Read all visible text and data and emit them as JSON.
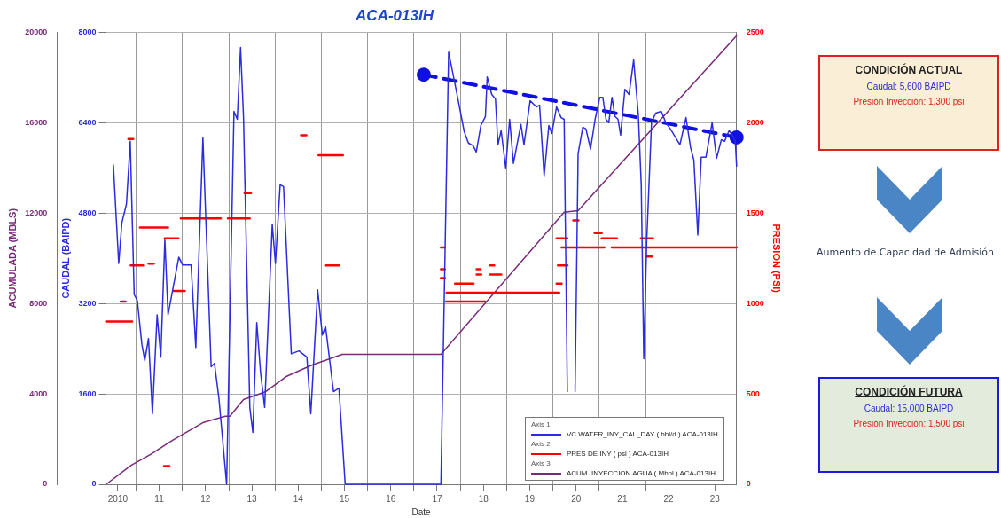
{
  "chart_data": [
    {
      "type": "line",
      "title": "ACA-013IH",
      "xlabel": "Date",
      "ylabel": "CAUDAL (BAIPD)",
      "y2label": "PRESION (PSI)",
      "y3label": "ACUMULADA (MBLS)",
      "xlim": [
        "2010-05-08",
        "2023-12-20"
      ],
      "xticks": [
        {
          "value": "2010-08-10",
          "label": "2010"
        },
        {
          "value": "2011-01-01",
          "label": null
        },
        {
          "value": "2011-07-02",
          "label": "11"
        },
        {
          "value": "2012-01-01",
          "label": null
        },
        {
          "value": "2012-07-02",
          "label": "12"
        },
        {
          "value": "2013-01-01",
          "label": null
        },
        {
          "value": "2013-07-02",
          "label": "13"
        },
        {
          "value": "2014-01-01",
          "label": null
        },
        {
          "value": "2014-07-02",
          "label": "14"
        },
        {
          "value": "2015-01-01",
          "label": null
        },
        {
          "value": "2015-07-02",
          "label": "15"
        },
        {
          "value": "2016-01-01",
          "label": null
        },
        {
          "value": "2016-07-02",
          "label": "16"
        },
        {
          "value": "2017-01-01",
          "label": null
        },
        {
          "value": "2017-07-02",
          "label": "17"
        },
        {
          "value": "2018-01-01",
          "label": null
        },
        {
          "value": "2018-07-02",
          "label": "18"
        },
        {
          "value": "2019-01-01",
          "label": null
        },
        {
          "value": "2019-07-02",
          "label": "19"
        },
        {
          "value": "2020-01-01",
          "label": null
        },
        {
          "value": "2020-07-02",
          "label": "20"
        },
        {
          "value": "2021-01-01",
          "label": null
        },
        {
          "value": "2021-07-02",
          "label": "21"
        },
        {
          "value": "2022-01-01",
          "label": null
        },
        {
          "value": "2022-07-02",
          "label": "22"
        },
        {
          "value": "2023-01-01",
          "label": null
        },
        {
          "value": "2023-07-02",
          "label": "23"
        }
      ],
      "ylim": [
        0,
        8000
      ],
      "yticks": [
        0,
        1600,
        3200,
        4800,
        6400,
        8000
      ],
      "y2lim": [
        0,
        2500
      ],
      "y2ticks": [
        0,
        500,
        1000,
        1500,
        2000,
        2500
      ],
      "y3lim": [
        0,
        20000
      ],
      "y3ticks": [
        0,
        4000,
        8000,
        12000,
        16000,
        20000
      ],
      "grid": true,
      "legend": "bottom right",
      "marker": "none",
      "line_style": "solid",
      "annotations": [
        "Axis 1",
        "Axis 2",
        "Axis 3"
      ],
      "series": [
        {
          "name": "VC WATER_INY_CAL_DAY ( bbl/d ) ACA-013IH",
          "color": "#2b2be0",
          "axis": "y",
          "x": [
            "2010-07-06",
            "2010-08-17",
            "2010-09-11",
            "2010-10-17",
            "2010-11-16",
            "2010-12-17",
            "2011-01-11",
            "2011-02-16",
            "2011-03-11",
            "2011-04-09",
            "2011-05-10",
            "2011-06-16",
            "2011-07-15",
            "2011-08-16",
            "2011-09-10",
            "2011-12-04",
            "2012-01-03",
            "2012-03-10",
            "2012-04-16",
            "2012-06-11",
            "2012-08-15",
            "2012-09-10",
            "2012-10-15",
            "2012-12-15",
            "2013-02-11",
            "2013-03-09",
            "2013-04-04",
            "2013-04-27",
            "2013-06-16",
            "2013-07-10",
            "2013-08-10",
            "2013-09-09",
            "2013-10-11",
            "2013-12-10",
            "2014-01-04",
            "2014-02-10",
            "2014-03-09",
            "2014-05-09",
            "2014-07-09",
            "2014-09-09",
            "2014-10-10",
            "2014-12-03",
            "2015-01-09",
            "2015-02-03",
            "2015-04-07",
            "2015-05-20",
            "2015-07-08",
            "2015-10-14",
            "2017-08-01",
            "2017-10-01",
            "2017-12-01",
            "2018-02-01",
            "2018-03-06",
            "2018-04-12",
            "2018-05-07",
            "2018-06-12",
            "2018-07-18",
            "2018-08-01",
            "2018-09-06",
            "2018-10-05",
            "2018-10-25",
            "2018-11-19",
            "2018-12-25",
            "2019-01-25",
            "2019-02-24",
            "2019-04-24",
            "2019-05-18",
            "2019-07-06",
            "2019-08-24",
            "2019-09-18",
            "2019-10-24",
            "2019-11-30",
            "2019-12-24",
            "2020-01-30",
            "2020-03-06",
            "2020-03-30",
            "2020-04-24",
            "2020-05-24",
            "2020-06-24",
            "2020-07-18",
            "2020-08-24",
            "2020-09-18",
            "2020-10-24",
            "2020-11-29",
            "2021-01-05",
            "2021-01-29",
            "2021-02-23",
            "2021-03-17",
            "2021-04-11",
            "2021-05-05",
            "2021-05-29",
            "2021-06-18",
            "2021-07-22",
            "2021-08-24",
            "2021-09-29",
            "2021-11-05",
            "2021-11-28",
            "2021-12-18",
            "2022-01-10",
            "2022-02-17",
            "2022-03-22",
            "2022-05-05",
            "2022-06-10",
            "2022-07-16",
            "2022-09-29",
            "2022-11-16",
            "2022-12-22",
            "2023-01-17",
            "2023-02-17",
            "2023-03-16",
            "2023-04-22",
            "2023-06-10",
            "2023-07-15",
            "2023-08-22",
            "2023-09-16",
            "2023-10-22",
            "2023-11-16",
            "2023-12-10",
            "2023-12-20"
          ],
          "values": [
            5650,
            3910,
            4630,
            4960,
            6070,
            3360,
            3250,
            2470,
            2190,
            2580,
            1250,
            3000,
            2250,
            4330,
            3000,
            4020,
            3880,
            3880,
            2420,
            6130,
            2080,
            2140,
            1530,
            0,
            6600,
            6460,
            7730,
            6510,
            1360,
            920,
            2860,
            1970,
            1360,
            4600,
            3910,
            5300,
            5270,
            2310,
            2360,
            2250,
            1250,
            3440,
            2640,
            2800,
            1640,
            1700,
            0,
            0,
            0,
            7650,
            6960,
            6240,
            6040,
            5990,
            5880,
            6350,
            6510,
            7210,
            6900,
            6820,
            6010,
            6260,
            5600,
            6460,
            5680,
            6370,
            6010,
            6790,
            6680,
            6710,
            5460,
            6350,
            6210,
            6680,
            6490,
            6460,
            1640,
            null,
            1640,
            5850,
            6320,
            6290,
            5930,
            6460,
            6850,
            6850,
            6460,
            6400,
            6850,
            6510,
            6460,
            6180,
            6990,
            6900,
            7510,
            6540,
            5300,
            2220,
            4300,
            6400,
            6570,
            6600,
            6400,
            6290,
            6010,
            6490,
            5960,
            5740,
            4410,
            5790,
            5790,
            6400,
            5770,
            6100,
            6070,
            6260,
            6180,
            6070,
            5630
          ]
        },
        {
          "name": "PRES DE INY ( psi ) ACA-013IH",
          "color": "#ff0000",
          "axis": "y2",
          "x": [
            "2010-05-10",
            "2010-12-01"
          ],
          "values": [
            900,
            900
          ]
        },
        {
          "color": "#ff0000",
          "axis": "y2",
          "x": [
            "2010-09-01",
            "2010-10-10"
          ],
          "values": [
            1010,
            1010
          ]
        },
        {
          "color": "#ff0000",
          "axis": "y2",
          "x": [
            "2010-11-01",
            "2010-12-10"
          ],
          "values": [
            1910,
            1910
          ]
        },
        {
          "color": "#ff0000",
          "axis": "y2",
          "x": [
            "2010-11-20",
            "2011-02-25"
          ],
          "values": [
            1210,
            1210
          ]
        },
        {
          "color": "#ff0000",
          "axis": "y2",
          "x": [
            "2011-04-10",
            "2011-05-20"
          ],
          "values": [
            1220,
            1220
          ]
        },
        {
          "color": "#ff0000",
          "axis": "y2",
          "x": [
            "2011-02-01",
            "2011-09-10"
          ],
          "values": [
            1420,
            1420
          ]
        },
        {
          "color": "#ff0000",
          "axis": "y2",
          "x": [
            "2011-08-15",
            "2011-12-01"
          ],
          "values": [
            1360,
            1360
          ]
        },
        {
          "color": "#ff0000",
          "axis": "y2",
          "x": [
            "2011-08-10",
            "2011-09-20"
          ],
          "values": [
            100,
            100
          ]
        },
        {
          "color": "#ff0000",
          "axis": "y2",
          "x": [
            "2011-10-25",
            "2012-01-20"
          ],
          "values": [
            1070,
            1070
          ]
        },
        {
          "color": "#ff0000",
          "axis": "y2",
          "x": [
            "2011-12-20",
            "2012-10-30"
          ],
          "values": [
            1470,
            1470
          ]
        },
        {
          "color": "#ff0000",
          "axis": "y2",
          "x": [
            "2012-12-25",
            "2013-06-15"
          ],
          "values": [
            1470,
            1470
          ]
        },
        {
          "color": "#ff0000",
          "axis": "y2",
          "x": [
            "2013-05-05",
            "2013-06-25"
          ],
          "values": [
            1610,
            1610
          ]
        },
        {
          "color": "#ff0000",
          "axis": "y2",
          "x": [
            "2014-07-25",
            "2014-09-05"
          ],
          "values": [
            1930,
            1930
          ]
        },
        {
          "color": "#ff0000",
          "axis": "y2",
          "x": [
            "2014-12-10",
            "2015-06-20"
          ],
          "values": [
            1820,
            1820
          ]
        },
        {
          "color": "#ff0000",
          "axis": "y2",
          "x": [
            "2015-02-01",
            "2015-05-20"
          ],
          "values": [
            1210,
            1210
          ]
        },
        {
          "color": "#ff0000",
          "axis": "y2",
          "x": [
            "2017-08-01",
            "2017-09-01"
          ],
          "values": [
            1310,
            1310
          ]
        },
        {
          "color": "#ff0000",
          "axis": "y2",
          "x": [
            "2017-08-01",
            "2017-09-01"
          ],
          "values": [
            1190,
            1190
          ]
        },
        {
          "color": "#ff0000",
          "axis": "y2",
          "x": [
            "2017-08-01",
            "2017-09-01"
          ],
          "values": [
            1140,
            1140
          ]
        },
        {
          "color": "#ff0000",
          "axis": "y2",
          "x": [
            "2017-09-15",
            "2020-02-20"
          ],
          "values": [
            1060,
            1060
          ]
        },
        {
          "color": "#ff0000",
          "axis": "y2",
          "x": [
            "2017-11-20",
            "2018-04-15"
          ],
          "values": [
            1110,
            1110
          ]
        },
        {
          "color": "#ff0000",
          "axis": "y2",
          "x": [
            "2017-09-10",
            "2018-07-15"
          ],
          "values": [
            1010,
            1010
          ]
        },
        {
          "color": "#ff0000",
          "axis": "y2",
          "x": [
            "2018-05-10",
            "2018-06-15"
          ],
          "values": [
            1160,
            1160
          ]
        },
        {
          "color": "#ff0000",
          "axis": "y2",
          "x": [
            "2018-08-25",
            "2018-11-20"
          ],
          "values": [
            1160,
            1160
          ]
        },
        {
          "color": "#ff0000",
          "axis": "y2",
          "x": [
            "2018-05-10",
            "2018-06-10"
          ],
          "values": [
            1190,
            1190
          ]
        },
        {
          "color": "#ff0000",
          "axis": "y2",
          "x": [
            "2018-08-25",
            "2018-09-25"
          ],
          "values": [
            1210,
            1210
          ]
        },
        {
          "color": "#ff0000",
          "axis": "y2",
          "x": [
            "2020-01-30",
            "2020-03-10"
          ],
          "values": [
            1110,
            1110
          ]
        },
        {
          "color": "#ff0000",
          "axis": "y2",
          "x": [
            "2020-01-30",
            "2020-04-25"
          ],
          "values": [
            1360,
            1360
          ]
        },
        {
          "color": "#ff0000",
          "axis": "y2",
          "x": [
            "2020-02-10",
            "2020-04-25"
          ],
          "values": [
            1210,
            1210
          ]
        },
        {
          "color": "#ff0000",
          "axis": "y2",
          "x": [
            "2020-03-10",
            "2021-02-10"
          ],
          "values": [
            1310,
            1310
          ]
        },
        {
          "color": "#ff0000",
          "axis": "y2",
          "x": [
            "2021-04-10",
            "2023-12-20"
          ],
          "values": [
            1310,
            1310
          ]
        },
        {
          "color": "#ff0000",
          "axis": "y2",
          "x": [
            "2020-06-10",
            "2020-07-20"
          ],
          "values": [
            1460,
            1460
          ]
        },
        {
          "color": "#ff0000",
          "axis": "y2",
          "x": [
            "2020-11-25",
            "2021-01-20"
          ],
          "values": [
            1390,
            1390
          ]
        },
        {
          "color": "#ff0000",
          "axis": "y2",
          "x": [
            "2021-01-20",
            "2021-05-20"
          ],
          "values": [
            1360,
            1360
          ]
        },
        {
          "color": "#ff0000",
          "axis": "y2",
          "x": [
            "2021-11-25",
            "2022-03-01"
          ],
          "values": [
            1360,
            1360
          ]
        },
        {
          "color": "#ff0000",
          "axis": "y2",
          "x": [
            "2022-01-05",
            "2022-02-20"
          ],
          "values": [
            1260,
            1260
          ]
        },
        {
          "name": "ACUM. INYECCION AGUA ( Mbbl ) ACA-013IH",
          "color": "#7a2a7a",
          "axis": "y3",
          "x": [
            "2010-05-10",
            "2010-11-23",
            "2011-04-28",
            "2011-10-16",
            "2012-06-16",
            "2012-12-04",
            "2013-01-10",
            "2013-04-27",
            "2013-10-16",
            "2014-04-03",
            "2014-10-16",
            "2015-06-15",
            "2017-08-01",
            "2020-03-30",
            "2020-07-18",
            "2023-12-20"
          ],
          "values": [
            0,
            840,
            1330,
            1950,
            2740,
            3010,
            3010,
            3750,
            4090,
            4780,
            5270,
            5750,
            5750,
            12040,
            12110,
            19850
          ]
        },
        {
          "color": "#1010e0",
          "axis": "y",
          "marker": "circle",
          "line_style": "dashed",
          "x": [
            "2017-03-19",
            "2023-12-20"
          ],
          "values": [
            7250,
            6140
          ]
        }
      ]
    },
    {
      "type": "other",
      "annotations": [
        "CONDICIÓN ACTUAL",
        "Caudal: 5,600 BAIPD",
        "Presión Inyección: 1,300 psi",
        "Aumento de Capacidad de Admisión",
        "CONDICIÓN FUTURA",
        "Caudal: 15,000 BAIPD",
        "Presión Inyección: 1,500 psi"
      ]
    }
  ]
}
